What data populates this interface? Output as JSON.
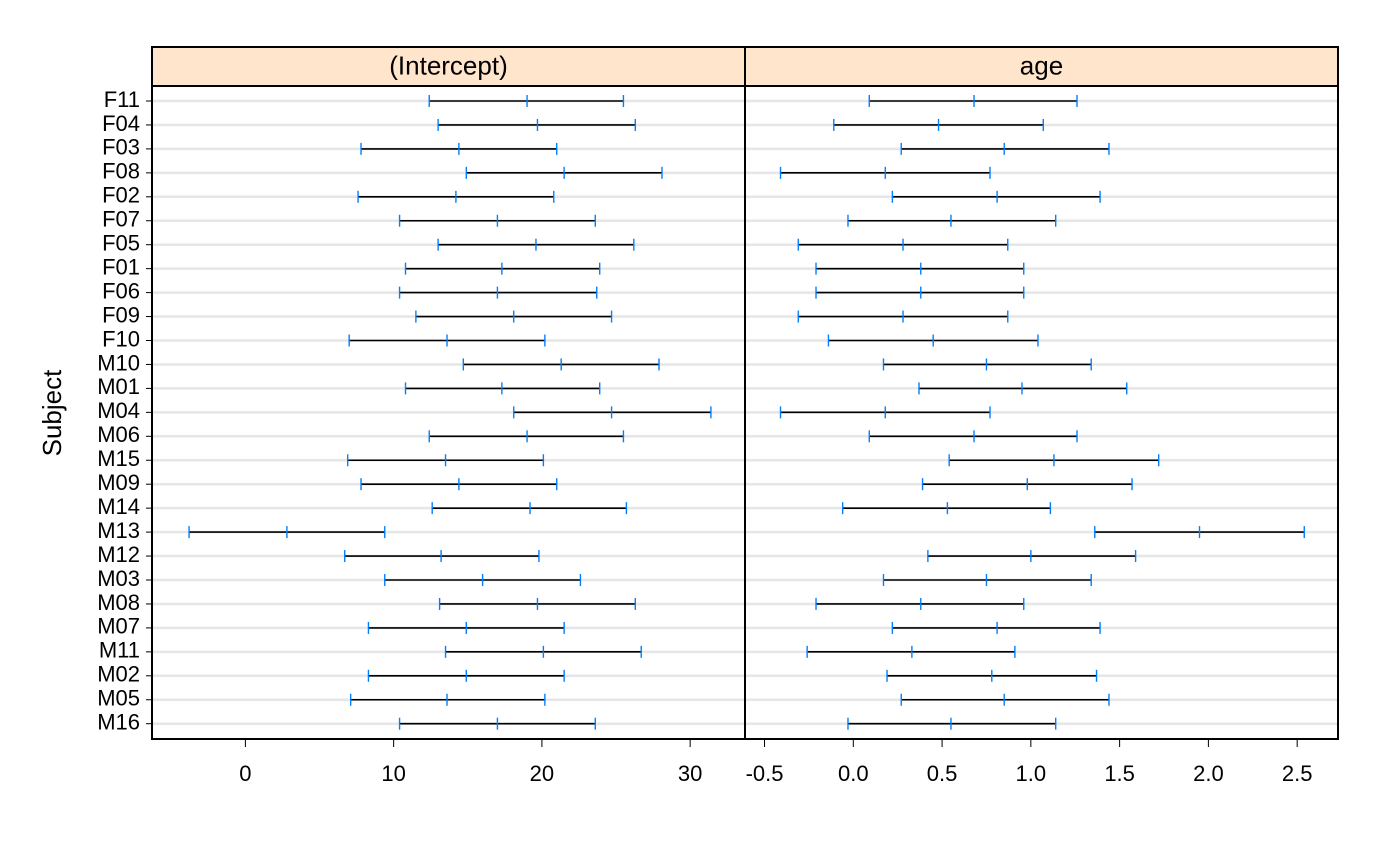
{
  "chart_data": {
    "type": "interval",
    "ylabel": "Subject",
    "subjects": [
      "F11",
      "F04",
      "F03",
      "F08",
      "F02",
      "F07",
      "F05",
      "F01",
      "F06",
      "F09",
      "F10",
      "M10",
      "M01",
      "M04",
      "M06",
      "M15",
      "M09",
      "M14",
      "M13",
      "M12",
      "M03",
      "M08",
      "M07",
      "M11",
      "M02",
      "M05",
      "M16"
    ],
    "panels": [
      {
        "strip": "(Intercept)",
        "xlim": [
          -6.3,
          33.7
        ],
        "ticks": [
          0,
          10,
          20,
          30
        ],
        "tick_labels": [
          "0",
          "10",
          "20",
          "30"
        ],
        "intervals": [
          {
            "subject": "F11",
            "lower": 12.4,
            "est": 19.0,
            "upper": 25.5
          },
          {
            "subject": "F04",
            "lower": 13.0,
            "est": 19.7,
            "upper": 26.3
          },
          {
            "subject": "F03",
            "lower": 7.8,
            "est": 14.4,
            "upper": 21.0
          },
          {
            "subject": "F08",
            "lower": 14.9,
            "est": 21.5,
            "upper": 28.1
          },
          {
            "subject": "F02",
            "lower": 7.6,
            "est": 14.2,
            "upper": 20.8
          },
          {
            "subject": "F07",
            "lower": 10.4,
            "est": 17.0,
            "upper": 23.6
          },
          {
            "subject": "F05",
            "lower": 13.0,
            "est": 19.6,
            "upper": 26.2
          },
          {
            "subject": "F01",
            "lower": 10.8,
            "est": 17.3,
            "upper": 23.9
          },
          {
            "subject": "F06",
            "lower": 10.4,
            "est": 17.0,
            "upper": 23.7
          },
          {
            "subject": "F09",
            "lower": 11.5,
            "est": 18.1,
            "upper": 24.7
          },
          {
            "subject": "F10",
            "lower": 7.0,
            "est": 13.6,
            "upper": 20.2
          },
          {
            "subject": "M10",
            "lower": 14.7,
            "est": 21.3,
            "upper": 27.9
          },
          {
            "subject": "M01",
            "lower": 10.8,
            "est": 17.3,
            "upper": 23.9
          },
          {
            "subject": "M04",
            "lower": 18.1,
            "est": 24.7,
            "upper": 31.4
          },
          {
            "subject": "M06",
            "lower": 12.4,
            "est": 19.0,
            "upper": 25.5
          },
          {
            "subject": "M15",
            "lower": 6.9,
            "est": 13.5,
            "upper": 20.1
          },
          {
            "subject": "M09",
            "lower": 7.8,
            "est": 14.4,
            "upper": 21.0
          },
          {
            "subject": "M14",
            "lower": 12.6,
            "est": 19.2,
            "upper": 25.7
          },
          {
            "subject": "M13",
            "lower": -3.8,
            "est": 2.8,
            "upper": 9.4
          },
          {
            "subject": "M12",
            "lower": 6.7,
            "est": 13.2,
            "upper": 19.8
          },
          {
            "subject": "M03",
            "lower": 9.4,
            "est": 16.0,
            "upper": 22.6
          },
          {
            "subject": "M08",
            "lower": 13.1,
            "est": 19.7,
            "upper": 26.3
          },
          {
            "subject": "M07",
            "lower": 8.3,
            "est": 14.9,
            "upper": 21.5
          },
          {
            "subject": "M11",
            "lower": 13.5,
            "est": 20.1,
            "upper": 26.7
          },
          {
            "subject": "M02",
            "lower": 8.3,
            "est": 14.9,
            "upper": 21.5
          },
          {
            "subject": "M05",
            "lower": 7.1,
            "est": 13.6,
            "upper": 20.2
          },
          {
            "subject": "M16",
            "lower": 10.4,
            "est": 17.0,
            "upper": 23.6
          }
        ]
      },
      {
        "strip": "age",
        "xlim": [
          -0.61,
          2.73
        ],
        "ticks": [
          -0.5,
          0.0,
          0.5,
          1.0,
          1.5,
          2.0,
          2.5
        ],
        "tick_labels": [
          "-0.5",
          "0.0",
          "0.5",
          "1.0",
          "1.5",
          "2.0",
          "2.5"
        ],
        "intervals": [
          {
            "subject": "F11",
            "lower": 0.09,
            "est": 0.68,
            "upper": 1.26
          },
          {
            "subject": "F04",
            "lower": -0.11,
            "est": 0.48,
            "upper": 1.07
          },
          {
            "subject": "F03",
            "lower": 0.27,
            "est": 0.85,
            "upper": 1.44
          },
          {
            "subject": "F08",
            "lower": -0.41,
            "est": 0.18,
            "upper": 0.77
          },
          {
            "subject": "F02",
            "lower": 0.22,
            "est": 0.81,
            "upper": 1.39
          },
          {
            "subject": "F07",
            "lower": -0.03,
            "est": 0.55,
            "upper": 1.14
          },
          {
            "subject": "F05",
            "lower": -0.31,
            "est": 0.28,
            "upper": 0.87
          },
          {
            "subject": "F01",
            "lower": -0.21,
            "est": 0.38,
            "upper": 0.96
          },
          {
            "subject": "F06",
            "lower": -0.21,
            "est": 0.38,
            "upper": 0.96
          },
          {
            "subject": "F09",
            "lower": -0.31,
            "est": 0.28,
            "upper": 0.87
          },
          {
            "subject": "F10",
            "lower": -0.14,
            "est": 0.45,
            "upper": 1.04
          },
          {
            "subject": "M10",
            "lower": 0.17,
            "est": 0.75,
            "upper": 1.34
          },
          {
            "subject": "M01",
            "lower": 0.37,
            "est": 0.95,
            "upper": 1.54
          },
          {
            "subject": "M04",
            "lower": -0.41,
            "est": 0.18,
            "upper": 0.77
          },
          {
            "subject": "M06",
            "lower": 0.09,
            "est": 0.68,
            "upper": 1.26
          },
          {
            "subject": "M15",
            "lower": 0.54,
            "est": 1.13,
            "upper": 1.72
          },
          {
            "subject": "M09",
            "lower": 0.39,
            "est": 0.98,
            "upper": 1.57
          },
          {
            "subject": "M14",
            "lower": -0.06,
            "est": 0.53,
            "upper": 1.11
          },
          {
            "subject": "M13",
            "lower": 1.36,
            "est": 1.95,
            "upper": 2.54
          },
          {
            "subject": "M12",
            "lower": 0.42,
            "est": 1.0,
            "upper": 1.59
          },
          {
            "subject": "M03",
            "lower": 0.17,
            "est": 0.75,
            "upper": 1.34
          },
          {
            "subject": "M08",
            "lower": -0.21,
            "est": 0.38,
            "upper": 0.96
          },
          {
            "subject": "M07",
            "lower": 0.22,
            "est": 0.81,
            "upper": 1.39
          },
          {
            "subject": "M11",
            "lower": -0.26,
            "est": 0.33,
            "upper": 0.91
          },
          {
            "subject": "M02",
            "lower": 0.19,
            "est": 0.78,
            "upper": 1.37
          },
          {
            "subject": "M05",
            "lower": 0.27,
            "est": 0.85,
            "upper": 1.44
          },
          {
            "subject": "M16",
            "lower": -0.03,
            "est": 0.55,
            "upper": 1.14
          }
        ]
      }
    ],
    "colors": {
      "strip": "#ffe5cc",
      "gridline": "#e6e6e6",
      "interval": "#000000",
      "tick_mark": "#0080ff"
    }
  }
}
